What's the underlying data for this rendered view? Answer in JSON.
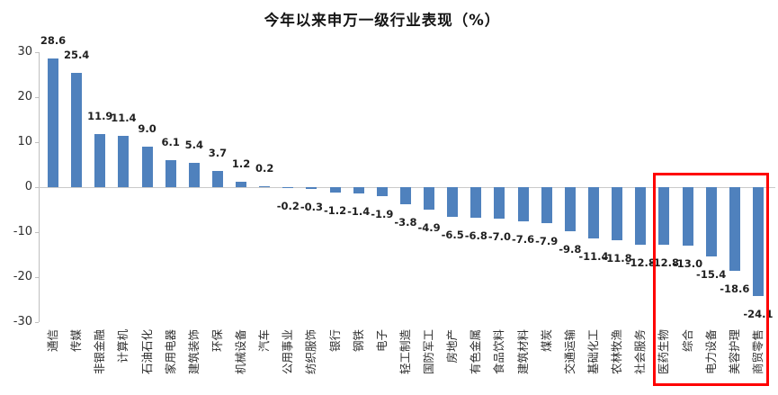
{
  "chart_data": {
    "type": "bar",
    "title": "今年以来申万一级行业表现（%）",
    "xlabel": "",
    "ylabel": "",
    "ylim": [
      -30,
      30
    ],
    "yticks": [
      30,
      20,
      10,
      0,
      -10,
      -20,
      -30
    ],
    "grid": "zero-line-only",
    "legend": "none",
    "bar_color": "#4F81BD",
    "axis_color": "#BFBFBF",
    "categories": [
      "通信",
      "传媒",
      "非银金融",
      "计算机",
      "石油石化",
      "家用电器",
      "建筑装饰",
      "环保",
      "机械设备",
      "汽车",
      "公用事业",
      "纺织服饰",
      "银行",
      "钢铁",
      "电子",
      "轻工制造",
      "国防军工",
      "房地产",
      "有色金属",
      "食品饮料",
      "建筑材料",
      "煤炭",
      "交通运输",
      "基础化工",
      "农林牧渔",
      "社会服务",
      "医药生物",
      "综合",
      "电力设备",
      "美容护理",
      "商贸零售"
    ],
    "values": [
      28.6,
      25.4,
      11.9,
      11.4,
      9.0,
      6.1,
      5.4,
      3.7,
      1.2,
      0.2,
      -0.2,
      -0.3,
      -1.2,
      -1.4,
      -1.9,
      -3.8,
      -4.9,
      -6.5,
      -6.8,
      -7.0,
      -7.6,
      -7.9,
      -9.8,
      -11.4,
      -11.8,
      -12.8,
      -12.8,
      -13.0,
      -15.4,
      -18.6,
      -24.1
    ],
    "highlight_box": {
      "color": "#FE0000",
      "start_category": "医药生物",
      "end_category": "商贸零售"
    }
  }
}
